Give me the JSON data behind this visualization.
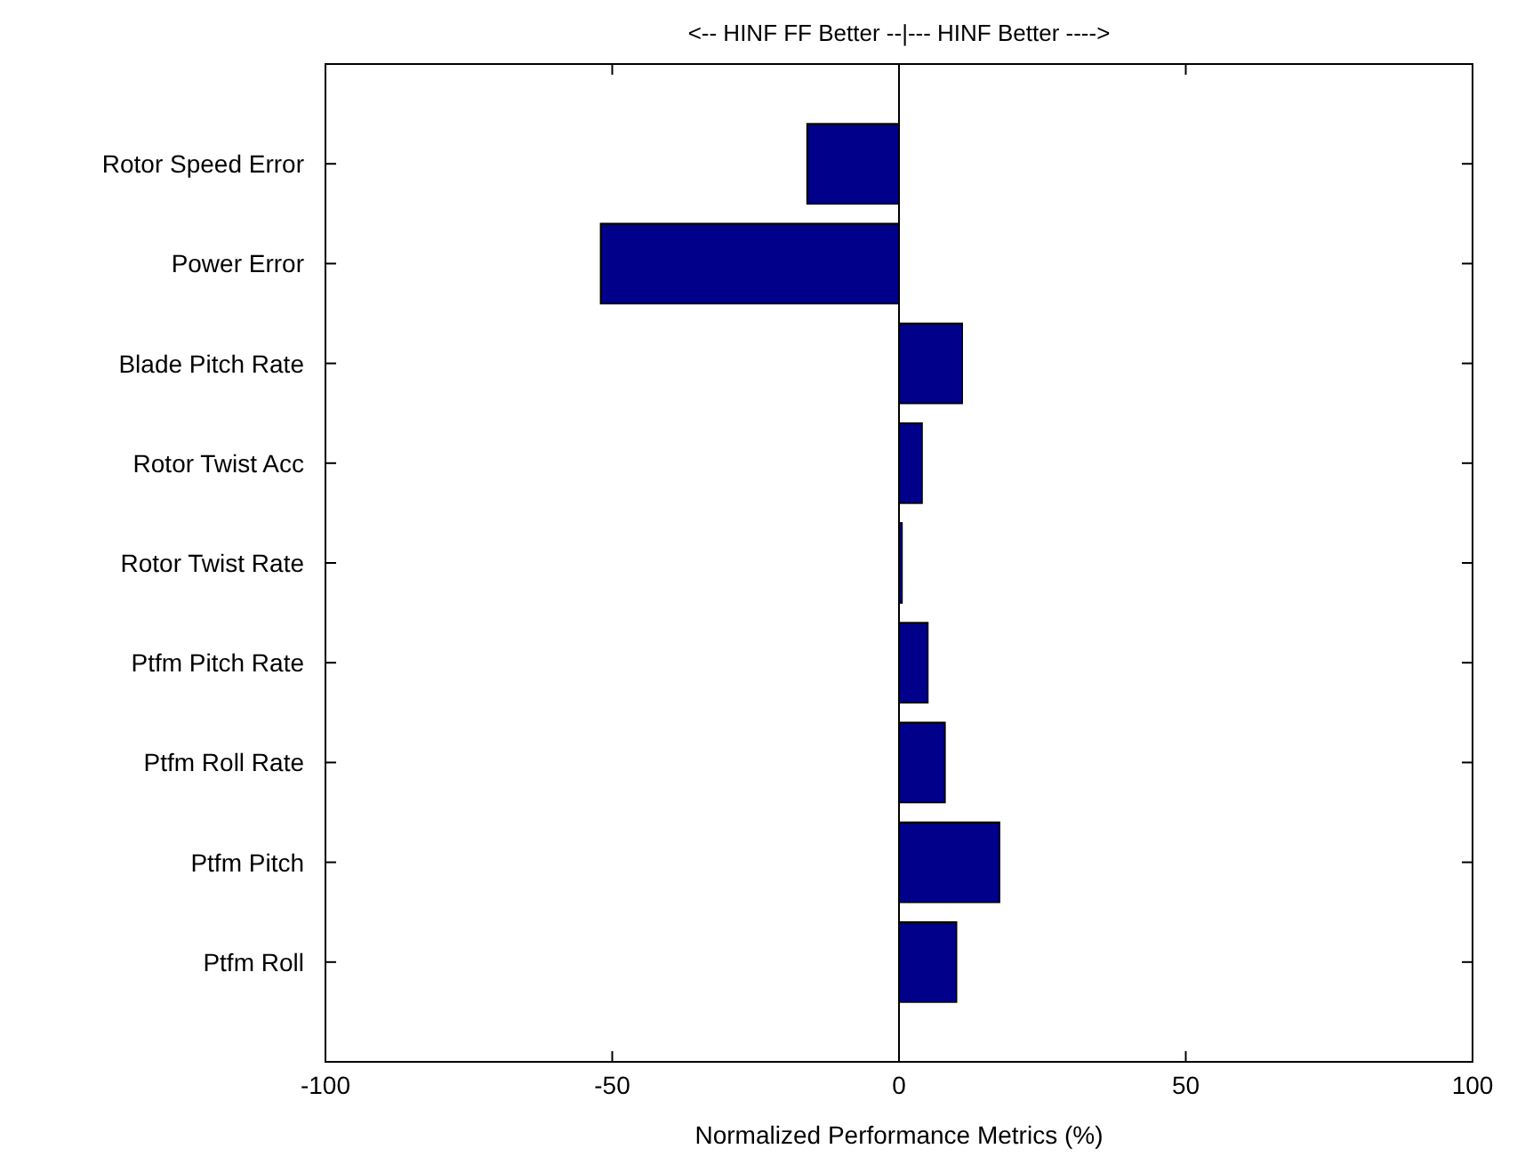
{
  "chart_data": {
    "type": "bar",
    "orientation": "horizontal",
    "title": "<-- HINF FF Better --|--- HINF Better ---->",
    "xlabel": "Normalized Performance Metrics (%)",
    "categories": [
      "Rotor Speed Error",
      "Power Error",
      "Blade Pitch Rate",
      "Rotor Twist Acc",
      "Rotor Twist Rate",
      "Ptfm Pitch Rate",
      "Ptfm Roll Rate",
      "Ptfm Pitch",
      "Ptfm Roll"
    ],
    "values": [
      -16,
      -52,
      11,
      4,
      0.5,
      5,
      8,
      17.5,
      10
    ],
    "color": "#00008b",
    "xlim": [
      -100,
      100
    ],
    "xticks": [
      -100,
      -50,
      0,
      50,
      100
    ],
    "ref_lines": [
      {
        "axis": "x",
        "value": 0,
        "color": "#000000"
      }
    ],
    "grid": false
  }
}
